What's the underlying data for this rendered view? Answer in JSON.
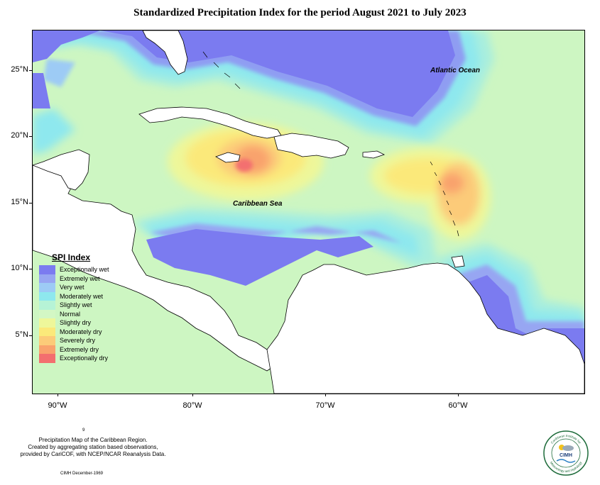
{
  "title": "Standardized Precipitation Index for the period August 2021 to July 2023",
  "axes": {
    "lat_labels": [
      "25°N",
      "20°N",
      "15°N",
      "10°N",
      "5°N"
    ],
    "lon_labels": [
      "90°W",
      "80°W",
      "70°W",
      "60°W"
    ]
  },
  "ocean_labels": {
    "atlantic": "Atlantic Ocean",
    "caribbean": "Caribbean Sea"
  },
  "legend": {
    "title": "SPI Index",
    "items": [
      {
        "label": "Exceptionally wet",
        "color": "#7b7bf0"
      },
      {
        "label": "Extremely wet",
        "color": "#97a6f2"
      },
      {
        "label": "Very wet",
        "color": "#9dcbf5"
      },
      {
        "label": "Moderately wet",
        "color": "#8ee8ee"
      },
      {
        "label": "Slightly wet",
        "color": "#b6f3d6"
      },
      {
        "label": "Normal",
        "color": "#d3f7c4"
      },
      {
        "label": "Slightly dry",
        "color": "#eef79a"
      },
      {
        "label": "Moderately dry",
        "color": "#fbe97a"
      },
      {
        "label": "Severely dry",
        "color": "#fccb79"
      },
      {
        "label": "Extremely dry",
        "color": "#f9a36d"
      },
      {
        "label": "Exceptionally dry",
        "color": "#f36f6f"
      }
    ]
  },
  "footnote": {
    "mark": "9",
    "line1": "Precipitation Map of the Caribbean Region.",
    "line2": "Created by aggregating station based observations,",
    "line3": "provided by CariCOF, with NCEP/NCAR Reanalysis Data.",
    "credit": "CIMH December-1969"
  },
  "logo": {
    "text": "CIMH",
    "ring_top": "Caribbean Institute for",
    "ring_bottom": "Meteorology and Hydrology"
  }
}
